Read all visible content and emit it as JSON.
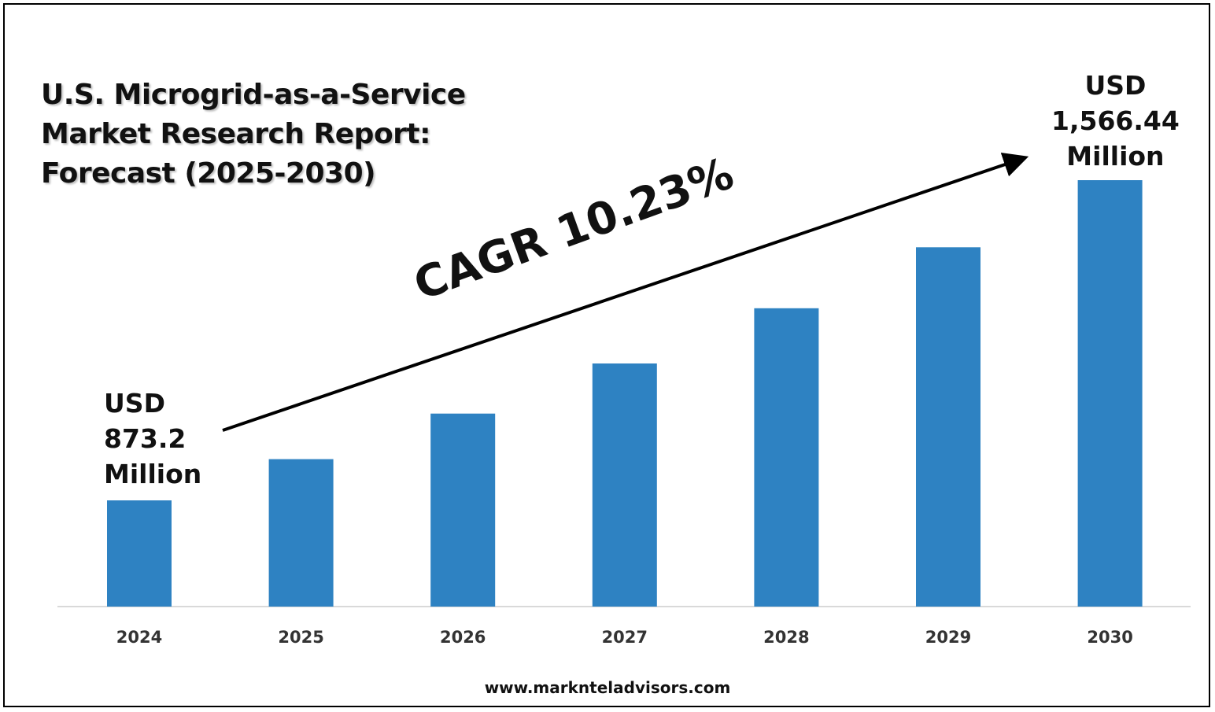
{
  "title_lines": [
    "U.S. Microgrid-as-a-Service",
    "Market Research Report:",
    "Forecast (2025-2030)"
  ],
  "callout_start_lines": [
    "USD",
    "873.2",
    "Million"
  ],
  "callout_end_lines": [
    "USD",
    "1,566.44",
    "Million"
  ],
  "cagr_label": "CAGR 10.23%",
  "footer_url": "www.marknteladvisors.com",
  "colors": {
    "bar": "#2E82C2",
    "axis": "#d9d9d9",
    "arrow": "#000000"
  },
  "chart_data": {
    "type": "bar",
    "categories": [
      "2024",
      "2025",
      "2026",
      "2027",
      "2028",
      "2029",
      "2030"
    ],
    "values": [
      873.2,
      962.5,
      1061,
      1169.5,
      1289.2,
      1421.1,
      1566.44
    ],
    "unit": "USD Million",
    "grid": false,
    "legend": "none"
  }
}
